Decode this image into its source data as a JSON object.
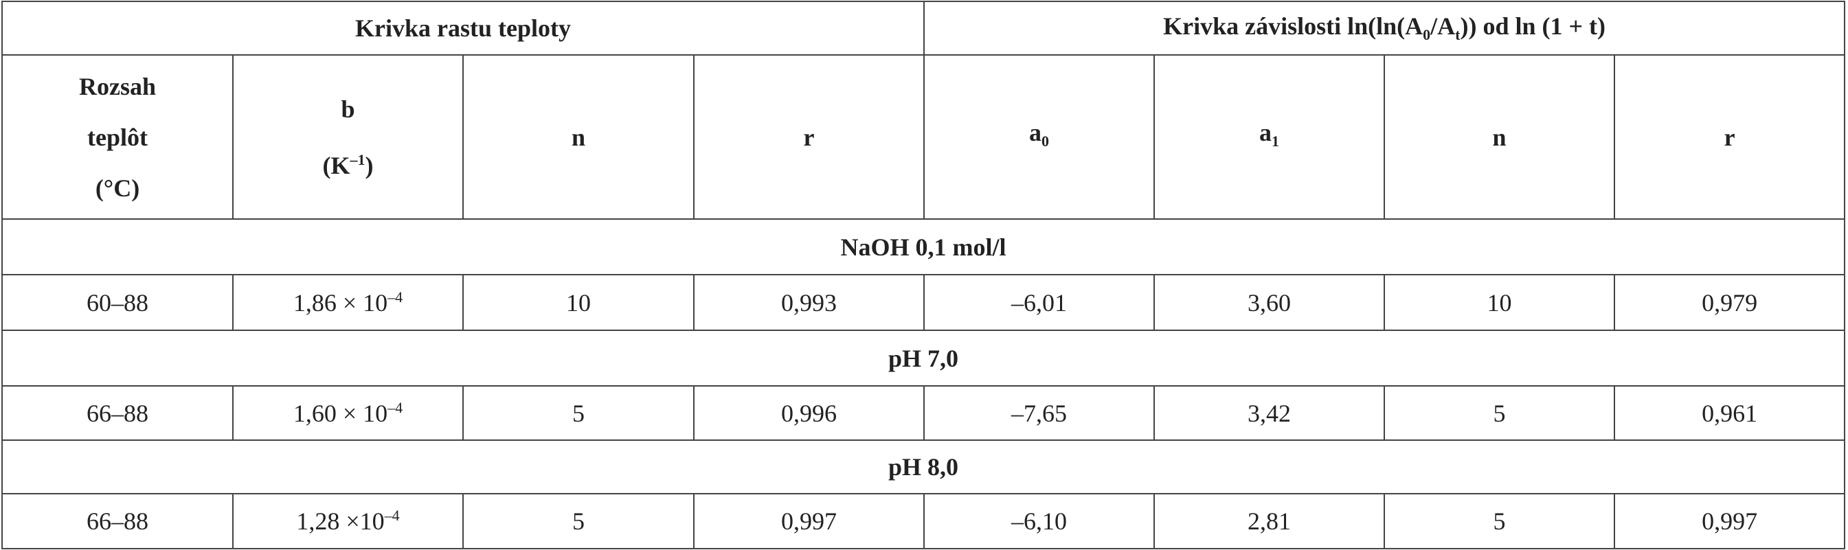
{
  "table": {
    "group_headers": [
      [
        "Krivka rastu teploty"
      ],
      [
        "Krivka závislosti ln(ln(A",
        {
          "sub": "0"
        },
        "/A",
        {
          "sub": "t"
        },
        ")) od ln (1 + t)"
      ]
    ],
    "column_headers": [
      [
        [
          "Rozsah"
        ],
        [
          "teplôt"
        ],
        [
          "(°C)"
        ]
      ],
      [
        [
          "b"
        ],
        [
          "(K",
          {
            "sup": "–1"
          },
          ")"
        ]
      ],
      [
        [
          "n"
        ]
      ],
      [
        [
          "r"
        ]
      ],
      [
        [
          "a",
          {
            "sub": "0"
          }
        ]
      ],
      [
        [
          "a",
          {
            "sub": "1"
          }
        ]
      ],
      [
        [
          "n"
        ]
      ],
      [
        [
          "r"
        ]
      ]
    ],
    "sections": [
      {
        "label": "NaOH 0,1 mol/l",
        "row": [
          "60–88",
          [
            "1,86 × 10",
            {
              "sup": "–4"
            }
          ],
          "10",
          "0,993",
          "–6,01",
          "3,60",
          "10",
          "0,979"
        ]
      },
      {
        "label": "pH 7,0",
        "row": [
          "66–88",
          [
            "1,60 × 10",
            {
              "sup": "–4"
            }
          ],
          "5",
          "0,996",
          "–7,65",
          "3,42",
          "5",
          "0,961"
        ]
      },
      {
        "label": "pH 8,0",
        "row": [
          "66–88",
          [
            "1,28  ×10",
            {
              "sup": "–4"
            }
          ],
          "5",
          "0,997",
          "–6,10",
          "2,81",
          "5",
          "0,997"
        ]
      }
    ]
  }
}
